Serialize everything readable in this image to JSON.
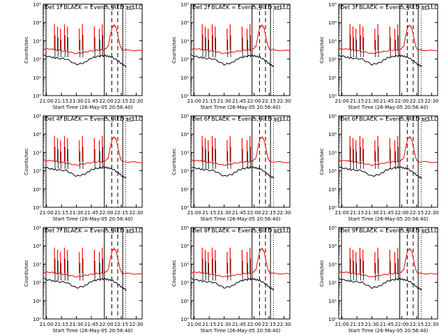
{
  "colors": {
    "events": "#000000",
    "lld": "#ff0000",
    "background": "#ffffff"
  },
  "common": {
    "xlabel": "Start Time (26-May-05 20:56:40)",
    "ylabel": "Counts/sec",
    "xticks": [
      "21:00",
      "21:15",
      "21:30",
      "21:45",
      "22:00",
      "22:15",
      "22:30"
    ],
    "xtick_minutes": [
      0,
      15,
      30,
      45,
      60,
      75,
      90
    ],
    "yticks": [
      "10⁰",
      "10¹",
      "10²",
      "10³",
      "10⁴",
      "10⁵"
    ],
    "ytick_values": [
      1,
      10,
      100,
      1000,
      10000,
      100000
    ],
    "xlim_minutes": [
      -3.33,
      96
    ],
    "ylim": [
      1,
      100000
    ],
    "interval_markers": {
      "solid_minutes": [
        -0.5,
        58,
        76.5
      ],
      "dashed_minutes": [
        65.5,
        71.5
      ],
      "dotted_minutes": [
        79.5
      ],
      "labels": [
        "S",
        "LD"
      ]
    },
    "red_curve_log10": [
      [
        -3.33,
        2.55
      ],
      [
        5,
        2.55
      ],
      [
        10,
        2.5
      ],
      [
        20,
        2.42
      ],
      [
        30,
        2.3
      ],
      [
        40,
        2.4
      ],
      [
        50,
        2.48
      ],
      [
        58,
        2.5
      ],
      [
        62,
        2.7
      ],
      [
        64,
        3.3
      ],
      [
        66,
        3.75
      ],
      [
        68,
        3.85
      ],
      [
        70,
        3.7
      ],
      [
        72,
        3.2
      ],
      [
        74,
        2.7
      ],
      [
        76,
        2.5
      ],
      [
        96,
        2.45
      ]
    ],
    "black_curve_log10": [
      [
        -3.33,
        2.2
      ],
      [
        5,
        2.1
      ],
      [
        10,
        2.05
      ],
      [
        20,
        2.0
      ],
      [
        30,
        1.7
      ],
      [
        38,
        1.8
      ],
      [
        45,
        2.05
      ],
      [
        52,
        2.15
      ],
      [
        58,
        2.2
      ],
      [
        62,
        2.15
      ],
      [
        66,
        2.1
      ],
      [
        72,
        1.9
      ],
      [
        76,
        1.7
      ],
      [
        80,
        1.6
      ]
    ],
    "spike_minutes": [
      8,
      11,
      14,
      18,
      21,
      33,
      36,
      48,
      53,
      56
    ],
    "spike_peak_log10": 3.9
  },
  "chart_data": [
    {
      "type": "line",
      "title": "Det 1f BLACK = Events, RED = LLD",
      "series": [
        {
          "name": "Events"
        },
        {
          "name": "LLD"
        }
      ]
    },
    {
      "type": "line",
      "title": "Det 2f BLACK = Events, RED = LLD",
      "series": [
        {
          "name": "Events"
        },
        {
          "name": "LLD"
        }
      ]
    },
    {
      "type": "line",
      "title": "Det 3f BLACK = Events, RED = LLD",
      "series": [
        {
          "name": "Events"
        },
        {
          "name": "LLD"
        }
      ]
    },
    {
      "type": "line",
      "title": "Det 4f BLACK = Events, RED = LLD",
      "series": [
        {
          "name": "Events"
        },
        {
          "name": "LLD"
        }
      ]
    },
    {
      "type": "line",
      "title": "Det 6f BLACK = Events, RED = LLD",
      "series": [
        {
          "name": "Events"
        },
        {
          "name": "LLD"
        }
      ]
    },
    {
      "type": "line",
      "title": "Det 6f BLACK = Events, RED = LLD",
      "series": [
        {
          "name": "Events"
        },
        {
          "name": "LLD"
        }
      ]
    },
    {
      "type": "line",
      "title": "Det 7f BLACK = Events, RED = LLD",
      "series": [
        {
          "name": "Events"
        },
        {
          "name": "LLD"
        }
      ]
    },
    {
      "type": "line",
      "title": "Det 8f BLACK = Events, RED = LLD",
      "series": [
        {
          "name": "Events"
        },
        {
          "name": "LLD"
        }
      ]
    },
    {
      "type": "line",
      "title": "Det 9f BLACK = Events, RED = LLD",
      "series": [
        {
          "name": "Events"
        },
        {
          "name": "LLD"
        }
      ]
    }
  ]
}
